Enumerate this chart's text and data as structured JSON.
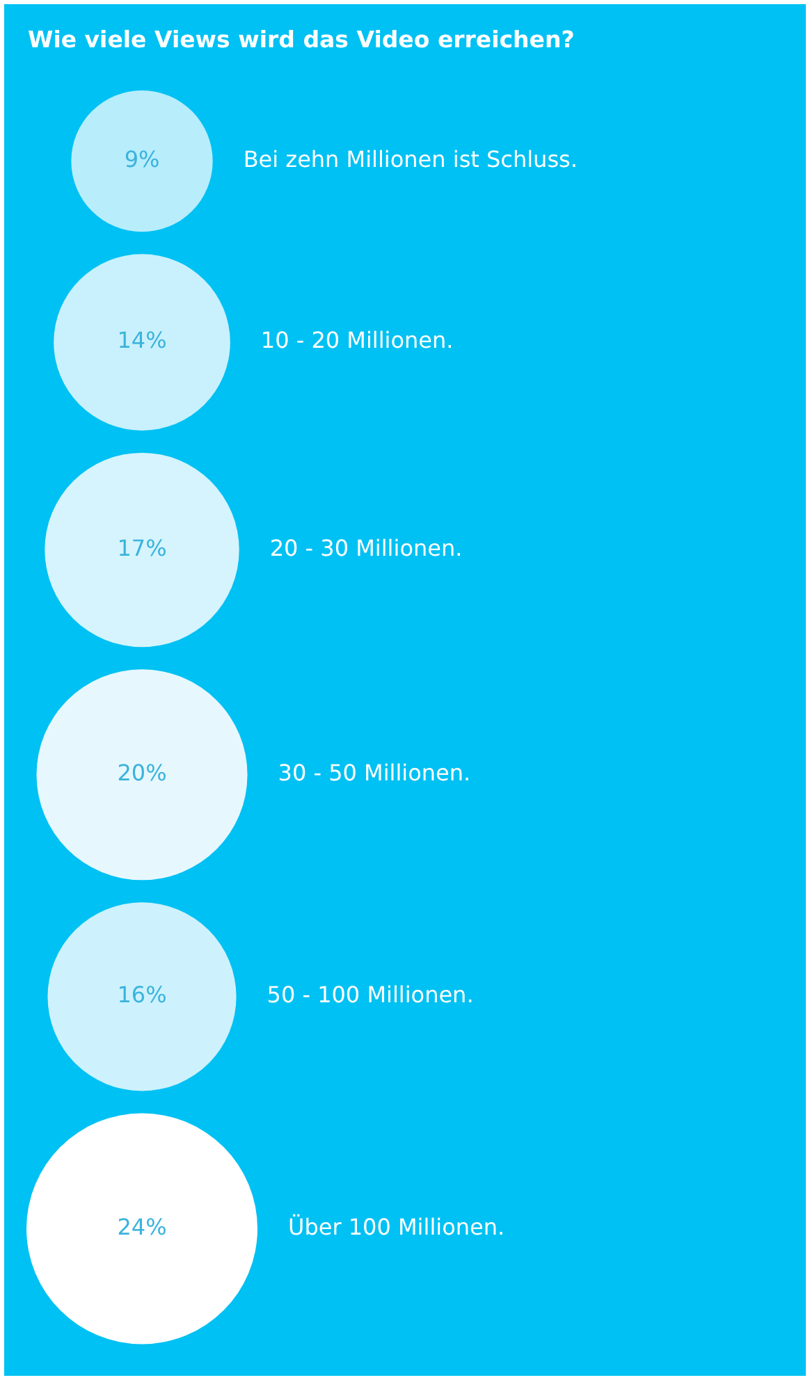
{
  "chart_data": {
    "type": "other",
    "title": "Wie viele Views wird das Video erreichen?",
    "categories": [
      "Bei zehn Millionen ist Schluss.",
      "10 - 20 Millionen.",
      "20 - 30 Millionen.",
      "30 - 50 Millionen.",
      "50 - 100 Millionen.",
      "Über 100 Millionen."
    ],
    "values": [
      9,
      14,
      17,
      20,
      16,
      24
    ],
    "value_labels": [
      "9%",
      "14%",
      "17%",
      "20%",
      "16%",
      "24%"
    ],
    "colors": [
      "#b8edfc",
      "#c9f1fd",
      "#d5f4fd",
      "#e6f8fe",
      "#cdf2fd",
      "#ffffff"
    ]
  }
}
